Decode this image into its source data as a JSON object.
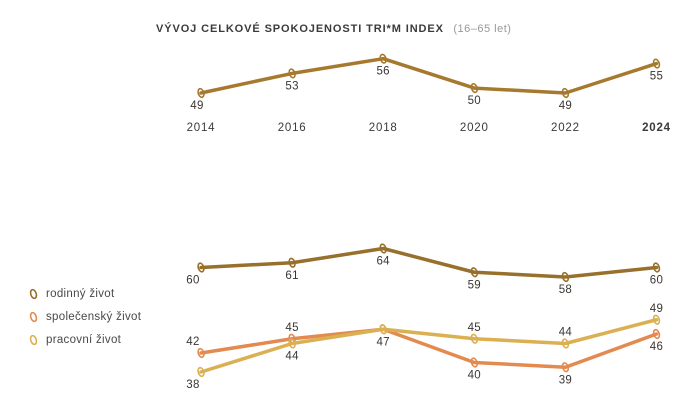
{
  "title": "VÝVOJ CELKOVÉ SPOKOJENOSTI TRI*M INDEX",
  "subtitle": "(16–65 let)",
  "colors": {
    "trim_index_line": "#A6792E",
    "family_line": "#97702B",
    "social_line": "#E28A4F",
    "work_line": "#DBB052",
    "label_text": "#3A3632",
    "title_text": "#3B3B3A",
    "subtitle_text": "#9B9996"
  },
  "chart_data": [
    {
      "type": "line",
      "title": "VÝVOJ CELKOVÉ SPOKOJENOSTI TRI*M INDEX",
      "subtitle": "(16–65 let)",
      "x": [
        "2014",
        "2016",
        "2018",
        "2020",
        "2022",
        "2024"
      ],
      "bold_last_x_tick": true,
      "grid": false,
      "ylim": [
        45,
        60
      ],
      "series": [
        {
          "id": "trim-index",
          "values": [
            49,
            53,
            56,
            50,
            49,
            55
          ],
          "color": "#A6792E",
          "label_sides": [
            "below",
            "below",
            "below",
            "below",
            "below",
            "below"
          ]
        }
      ]
    },
    {
      "type": "line",
      "x": [
        "2014",
        "2016",
        "2018",
        "2020",
        "2022",
        "2024"
      ],
      "show_x_labels": false,
      "grid": false,
      "ylim": [
        36,
        66
      ],
      "legend_position": "left",
      "series": [
        {
          "id": "rodinny-zivot",
          "name": "rodinný život",
          "values": [
            60,
            61,
            64,
            59,
            58,
            60
          ],
          "color": "#97702B",
          "label_sides": [
            "below",
            "below",
            "below",
            "below",
            "below",
            "below"
          ]
        },
        {
          "id": "spolecensky-zivot",
          "name": "společenský život",
          "values": [
            42,
            45,
            47,
            40,
            39,
            46
          ],
          "color": "#E28A4F",
          "label_sides": [
            "above",
            "above",
            "below",
            "below",
            "below",
            "below"
          ]
        },
        {
          "id": "pracovni-zivot",
          "name": "pracovní život",
          "values": [
            38,
            44,
            47,
            45,
            44,
            49
          ],
          "color": "#DBB052",
          "label_sides": [
            "below",
            "below",
            "none",
            "above",
            "above",
            "above"
          ]
        }
      ]
    }
  ]
}
